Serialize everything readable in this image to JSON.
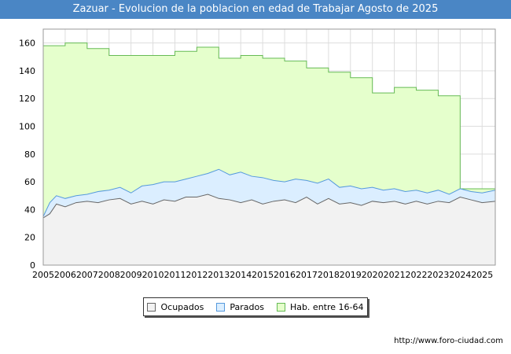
{
  "title": "Zazuar - Evolucion de la poblacion en edad de Trabajar Agosto de 2025",
  "source": "http://www.foro-ciudad.com",
  "chart_data": {
    "type": "area",
    "x_labels": [
      "2005",
      "2006",
      "2007",
      "2008",
      "2009",
      "2010",
      "2011",
      "2012",
      "2013",
      "2014",
      "2015",
      "2016",
      "2017",
      "2018",
      "2019",
      "2020",
      "2021",
      "2022",
      "2023",
      "2024",
      "2025"
    ],
    "y_ticks": [
      0,
      20,
      40,
      60,
      80,
      100,
      120,
      140,
      160
    ],
    "ylim": [
      0,
      170
    ],
    "xlim": [
      2005,
      2025.6
    ],
    "grid": true,
    "legend_position": "bottom",
    "legend": [
      {
        "name": "Ocupados",
        "color": "#f2f2f2",
        "border": "#666666"
      },
      {
        "name": "Parados",
        "color": "#dbeeff",
        "border": "#7fb2e5"
      },
      {
        "name": "Hab. entre 16-64",
        "color": "#e5ffcc",
        "border": "#7fcc66"
      }
    ],
    "series": [
      {
        "name": "Hab. entre 16-64",
        "color": "#e5ffcc",
        "line": "#66bb55",
        "step": true,
        "x": [
          2005,
          2006,
          2007,
          2008,
          2009,
          2010,
          2011,
          2012,
          2013,
          2014,
          2015,
          2016,
          2017,
          2018,
          2019,
          2020,
          2021,
          2022,
          2023,
          2024,
          2025
        ],
        "values": [
          158,
          160,
          156,
          151,
          151,
          151,
          154,
          157,
          149,
          151,
          149,
          147,
          142,
          139,
          135,
          124,
          128,
          126,
          122,
          55,
          55
        ]
      },
      {
        "name": "Parados",
        "color": "#dbeeff",
        "line": "#5599dd",
        "x": [
          2005,
          2005.3,
          2005.6,
          2006,
          2006.5,
          2007,
          2007.5,
          2008,
          2008.5,
          2009,
          2009.5,
          2010,
          2010.5,
          2011,
          2011.5,
          2012,
          2012.5,
          2013,
          2013.5,
          2014,
          2014.5,
          2015,
          2015.5,
          2016,
          2016.5,
          2017,
          2017.5,
          2018,
          2018.5,
          2019,
          2019.5,
          2020,
          2020.5,
          2021,
          2021.5,
          2022,
          2022.5,
          2023,
          2023.5,
          2024,
          2024.5,
          2025,
          2025.6
        ],
        "values": [
          35,
          45,
          50,
          48,
          50,
          51,
          53,
          54,
          56,
          52,
          57,
          58,
          60,
          60,
          62,
          64,
          66,
          69,
          65,
          67,
          64,
          63,
          61,
          60,
          62,
          61,
          59,
          62,
          56,
          57,
          55,
          56,
          54,
          55,
          53,
          54,
          52,
          54,
          51,
          55,
          53,
          52,
          54
        ]
      },
      {
        "name": "Ocupados",
        "color": "#f2f2f2",
        "line": "#666666",
        "x": [
          2005,
          2005.3,
          2005.6,
          2006,
          2006.5,
          2007,
          2007.5,
          2008,
          2008.5,
          2009,
          2009.5,
          2010,
          2010.5,
          2011,
          2011.5,
          2012,
          2012.5,
          2013,
          2013.5,
          2014,
          2014.5,
          2015,
          2015.5,
          2016,
          2016.5,
          2017,
          2017.5,
          2018,
          2018.5,
          2019,
          2019.5,
          2020,
          2020.5,
          2021,
          2021.5,
          2022,
          2022.5,
          2023,
          2023.5,
          2024,
          2024.5,
          2025,
          2025.6
        ],
        "values": [
          34,
          37,
          44,
          42,
          45,
          46,
          45,
          47,
          48,
          44,
          46,
          44,
          47,
          46,
          49,
          49,
          51,
          48,
          47,
          45,
          47,
          44,
          46,
          47,
          45,
          49,
          44,
          48,
          44,
          45,
          43,
          46,
          45,
          46,
          44,
          46,
          44,
          46,
          45,
          49,
          47,
          45,
          46
        ]
      }
    ]
  }
}
